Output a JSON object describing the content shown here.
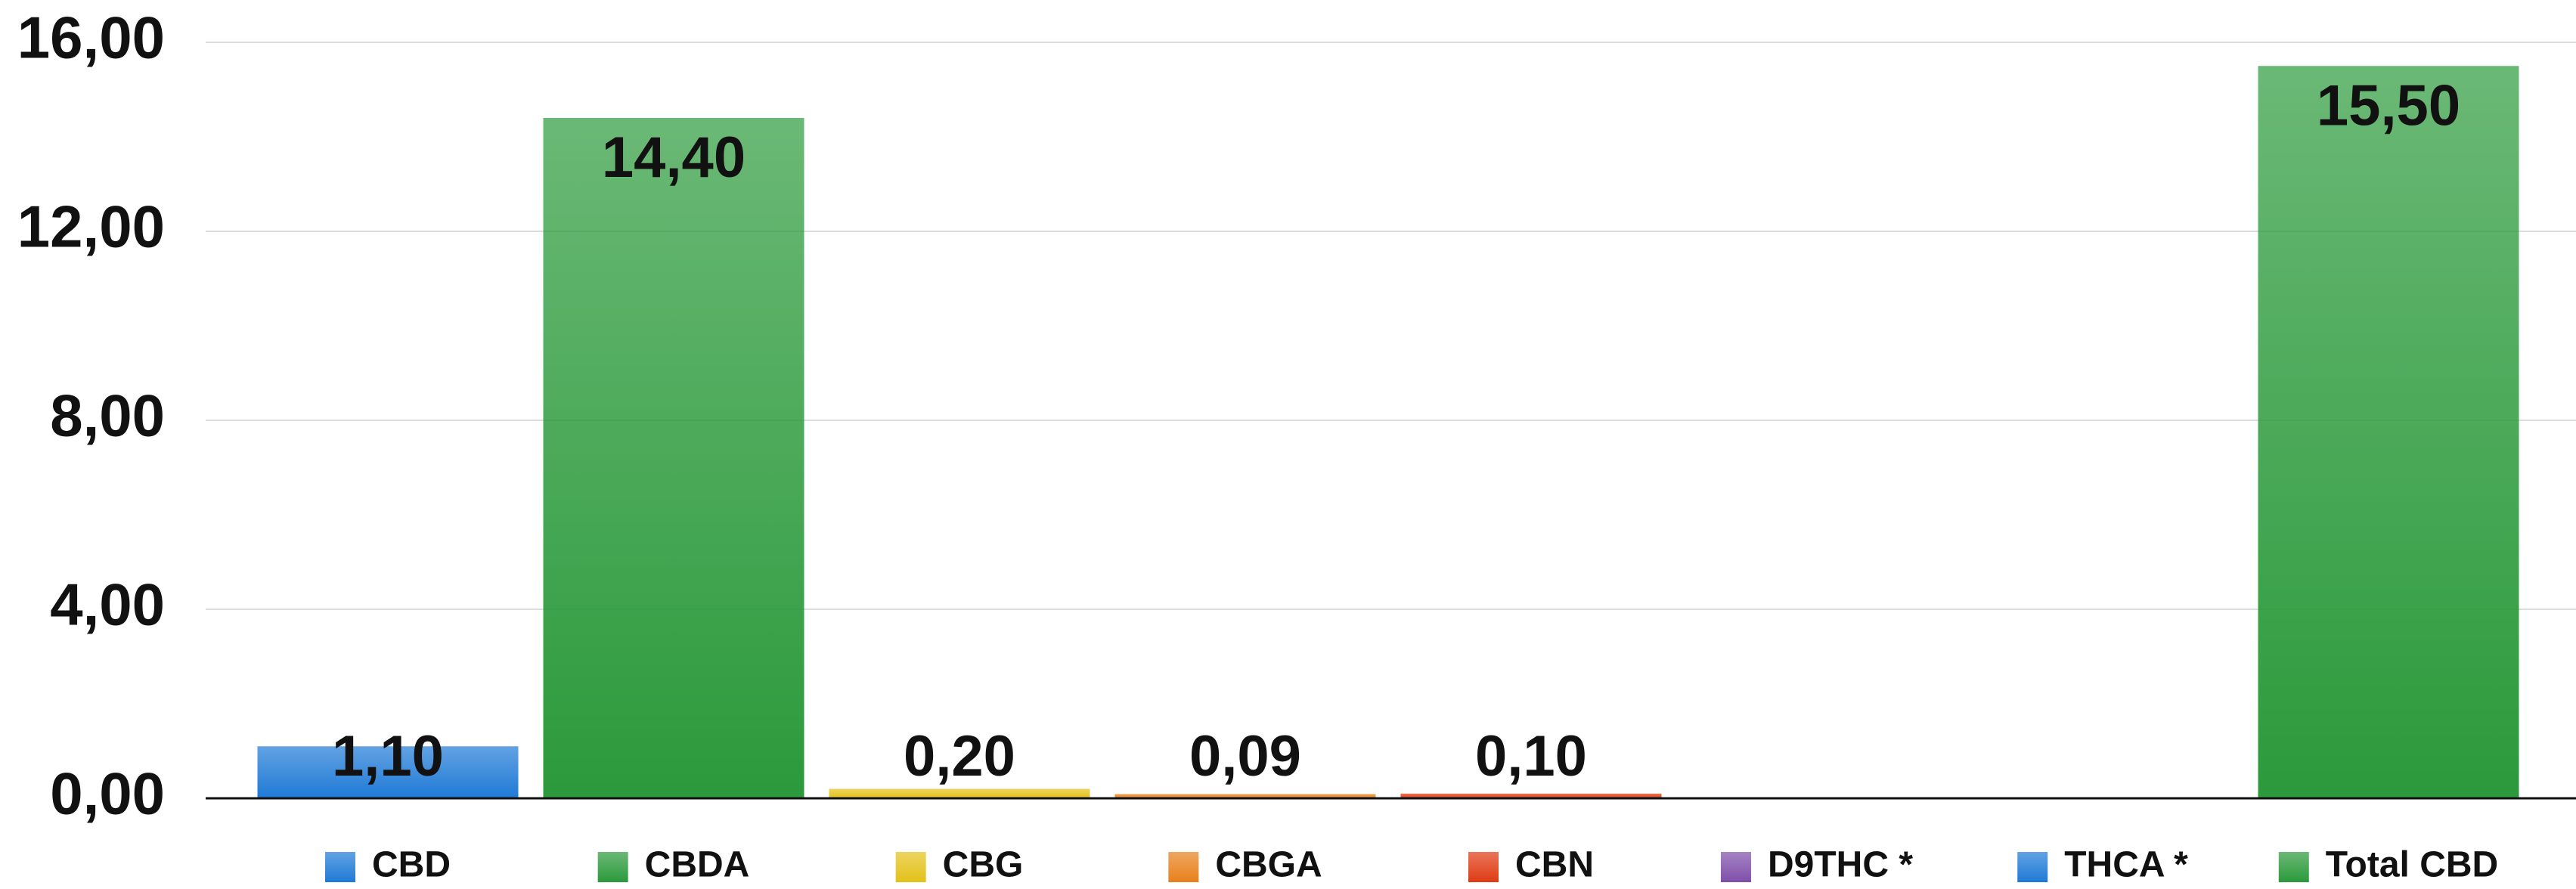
{
  "chart_data": {
    "type": "bar",
    "categories": [
      "CBD",
      "CBDA",
      "CBG",
      "CBGA",
      "CBN",
      "D9THC *",
      "THCA *",
      "Total CBD"
    ],
    "values": [
      1.1,
      14.4,
      0.2,
      0.09,
      0.1,
      null,
      null,
      15.5
    ],
    "value_labels": [
      "1,10",
      "14,40",
      "0,20",
      "0,09",
      "0,10",
      null,
      null,
      "15,50"
    ],
    "colors": [
      "#1f7ad6",
      "#2b9a3b",
      "#e3c21a",
      "#e8801c",
      "#de3b13",
      "#7f4fa9",
      "#1f7ad6",
      "#2b9a3b"
    ],
    "ylim": [
      0,
      16
    ],
    "yticks": [
      {
        "value": 0,
        "label": "0,00"
      },
      {
        "value": 4,
        "label": "4,00"
      },
      {
        "value": 8,
        "label": "8,00"
      },
      {
        "value": 12,
        "label": "12,00"
      },
      {
        "value": 16,
        "label": "16,00"
      }
    ],
    "grid": true,
    "legend": "bottom"
  }
}
